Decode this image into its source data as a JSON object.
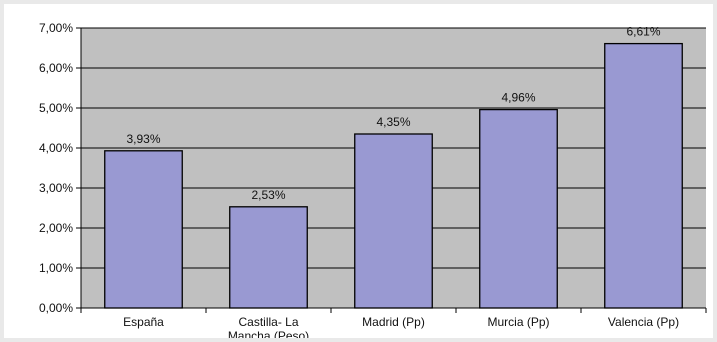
{
  "chart_data": {
    "type": "bar",
    "categories": [
      "España",
      "Castilla- La Mancha (Peso)",
      "Madrid (Pp)",
      "Murcia (Pp)",
      "Valencia (Pp)"
    ],
    "category_lines": [
      [
        "España"
      ],
      [
        "Castilla- La",
        "Mancha (Peso)"
      ],
      [
        "Madrid (Pp)"
      ],
      [
        "Murcia (Pp)"
      ],
      [
        "Valencia (Pp)"
      ]
    ],
    "values": [
      3.93,
      2.53,
      4.35,
      4.96,
      6.61
    ],
    "data_labels": [
      "3,93%",
      "2,53%",
      "4,35%",
      "4,96%",
      "6,61%"
    ],
    "y_ticks": [
      0,
      1,
      2,
      3,
      4,
      5,
      6,
      7
    ],
    "y_tick_labels": [
      "0,00%",
      "1,00%",
      "2,00%",
      "3,00%",
      "4,00%",
      "5,00%",
      "6,00%",
      "7,00%"
    ],
    "ylim": [
      0,
      7
    ],
    "title": "",
    "xlabel": "",
    "ylabel": "",
    "grid": true,
    "legend": "none",
    "colors": {
      "plot_background": "#c0c0c0",
      "bar_fill": "#9999d2",
      "bar_stroke": "#000000",
      "gridline": "#000000"
    }
  }
}
